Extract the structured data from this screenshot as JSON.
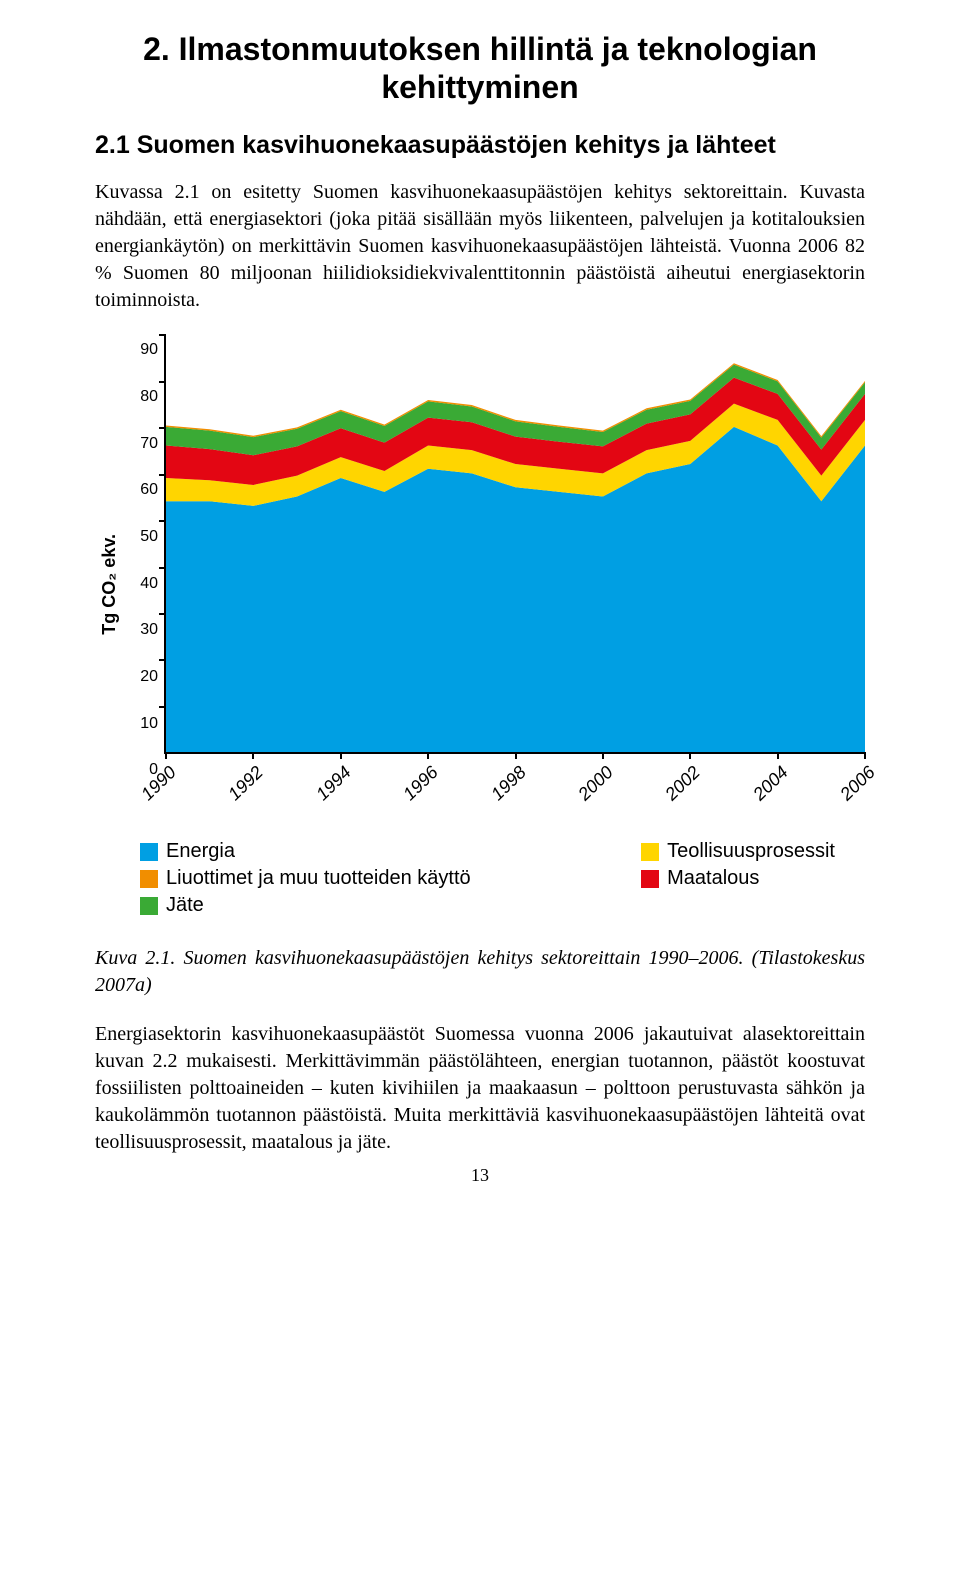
{
  "heading1": "2. Ilmastonmuutoksen hillintä ja teknologian kehittyminen",
  "heading2": "2.1 Suomen kasvihuonekaasupäästöjen kehitys ja lähteet",
  "para1": "Kuvassa 2.1 on esitetty Suomen kasvihuonekaasupäästöjen kehitys sektoreittain. Kuvasta nähdään, että energiasektori (joka pitää sisällään myös liikenteen, palvelujen ja kotitalouksien energiankäytön) on merkittävin Suomen kasvihuonekaasupäästöjen lähteistä. Vuonna 2006 82 % Suomen 80 miljoonan hiilidioksidiekvivalenttitonnin päästöistä aiheutui energiasektorin toiminnoista.",
  "caption": "Kuva 2.1. Suomen kasvihuonekaasupäästöjen kehitys sektoreittain 1990–2006. (Tilastokeskus 2007a)",
  "para2": "Energiasektorin kasvihuonekaasupäästöt Suomessa vuonna 2006 jakautuivat alasektoreittain kuvan 2.2 mukaisesti. Merkittävimmän päästölähteen, energian tuotannon, päästöt koostuvat fossiilisten polttoaineiden – kuten kivihiilen ja maakaasun – polttoon perustuvasta sähkön ja kaukolämmön tuotannon päästöistä. Muita merkittäviä kasvihuonekaasupäästöjen lähteitä ovat teollisuusprosessit, maatalous ja jäte.",
  "pagenum": "13",
  "chart": {
    "type": "area-stacked",
    "xlabels": [
      "1990",
      "1992",
      "1994",
      "1996",
      "1998",
      "2000",
      "2002",
      "2004",
      "2006"
    ],
    "ylabel": "Tg CO₂ ekv.",
    "ylim": [
      0,
      90
    ],
    "ytick_step": 10,
    "yticks": [
      0,
      10,
      20,
      30,
      40,
      50,
      60,
      70,
      80,
      90
    ],
    "background_color": "#ffffff",
    "axis_color": "#000000",
    "label_fontsize": 16,
    "tick_fontsize": 16,
    "series_order": [
      "energia",
      "teollisuus",
      "maatalous",
      "jate",
      "liuottimet"
    ],
    "colors": {
      "energia": "#009fe3",
      "teollisuus": "#ffd500",
      "liuottimet": "#f18e00",
      "maatalous": "#e30613",
      "jate": "#3aaa35"
    },
    "categories": [
      1990,
      1991,
      1992,
      1993,
      1994,
      1995,
      1996,
      1997,
      1998,
      1999,
      2000,
      2001,
      2002,
      2003,
      2004,
      2005,
      2006
    ],
    "series": {
      "energia": [
        54,
        54,
        53,
        55,
        59,
        56,
        61,
        60,
        57,
        56,
        55,
        60,
        62,
        70,
        66,
        54,
        66
      ],
      "teollisuus": [
        5,
        4.5,
        4.5,
        4.5,
        4.5,
        4.5,
        5,
        5,
        5,
        5,
        5,
        5,
        5,
        5,
        5.5,
        5.5,
        5.5
      ],
      "liuottimet": [
        0.3,
        0.3,
        0.3,
        0.3,
        0.3,
        0.3,
        0.3,
        0.3,
        0.3,
        0.3,
        0.3,
        0.3,
        0.3,
        0.3,
        0.3,
        0.3,
        0.3
      ],
      "maatalous": [
        7,
        6.7,
        6.4,
        6.3,
        6.2,
        6.1,
        6,
        6,
        5.9,
        5.8,
        5.8,
        5.7,
        5.7,
        5.6,
        5.6,
        5.6,
        5.6
      ],
      "jate": [
        4,
        4,
        3.9,
        3.8,
        3.7,
        3.6,
        3.5,
        3.4,
        3.3,
        3.2,
        3.1,
        3,
        2.9,
        2.8,
        2.7,
        2.6,
        2.5
      ]
    }
  },
  "legend": {
    "left": [
      {
        "key": "energia",
        "label": "Energia"
      },
      {
        "key": "liuottimet",
        "label": "Liuottimet ja muu tuotteiden käyttö"
      },
      {
        "key": "jate",
        "label": "Jäte"
      }
    ],
    "right": [
      {
        "key": "teollisuus",
        "label": "Teollisuusprosessit"
      },
      {
        "key": "maatalous",
        "label": "Maatalous"
      }
    ]
  }
}
